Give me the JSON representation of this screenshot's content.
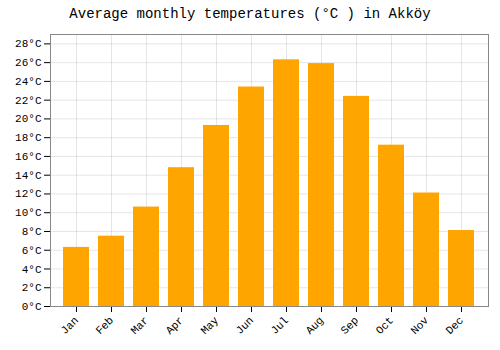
{
  "chart_data": {
    "type": "bar",
    "title": "Average monthly temperatures (°C ) in Akköy",
    "categories": [
      "Jan",
      "Feb",
      "Mar",
      "Apr",
      "May",
      "Jun",
      "Jul",
      "Aug",
      "Sep",
      "Oct",
      "Nov",
      "Dec"
    ],
    "values": [
      6.3,
      7.5,
      10.6,
      14.8,
      19.3,
      23.4,
      26.3,
      25.9,
      22.4,
      17.2,
      12.1,
      8.1
    ],
    "color": "#FFA500",
    "ylim": [
      0,
      29
    ],
    "yticks": [
      {
        "value": 0,
        "label": "0°C"
      },
      {
        "value": 2,
        "label": "2°C"
      },
      {
        "value": 4,
        "label": "4°C"
      },
      {
        "value": 6,
        "label": "6°C"
      },
      {
        "value": 8,
        "label": "8°C"
      },
      {
        "value": 10,
        "label": "10°C"
      },
      {
        "value": 12,
        "label": "12°C"
      },
      {
        "value": 14,
        "label": "14°C"
      },
      {
        "value": 16,
        "label": "16°C"
      },
      {
        "value": 18,
        "label": "18°C"
      },
      {
        "value": 20,
        "label": "20°C"
      },
      {
        "value": 22,
        "label": "22°C"
      },
      {
        "value": 24,
        "label": "24°C"
      },
      {
        "value": 26,
        "label": "26°C"
      },
      {
        "value": 28,
        "label": "28°C"
      }
    ],
    "grid": true
  }
}
